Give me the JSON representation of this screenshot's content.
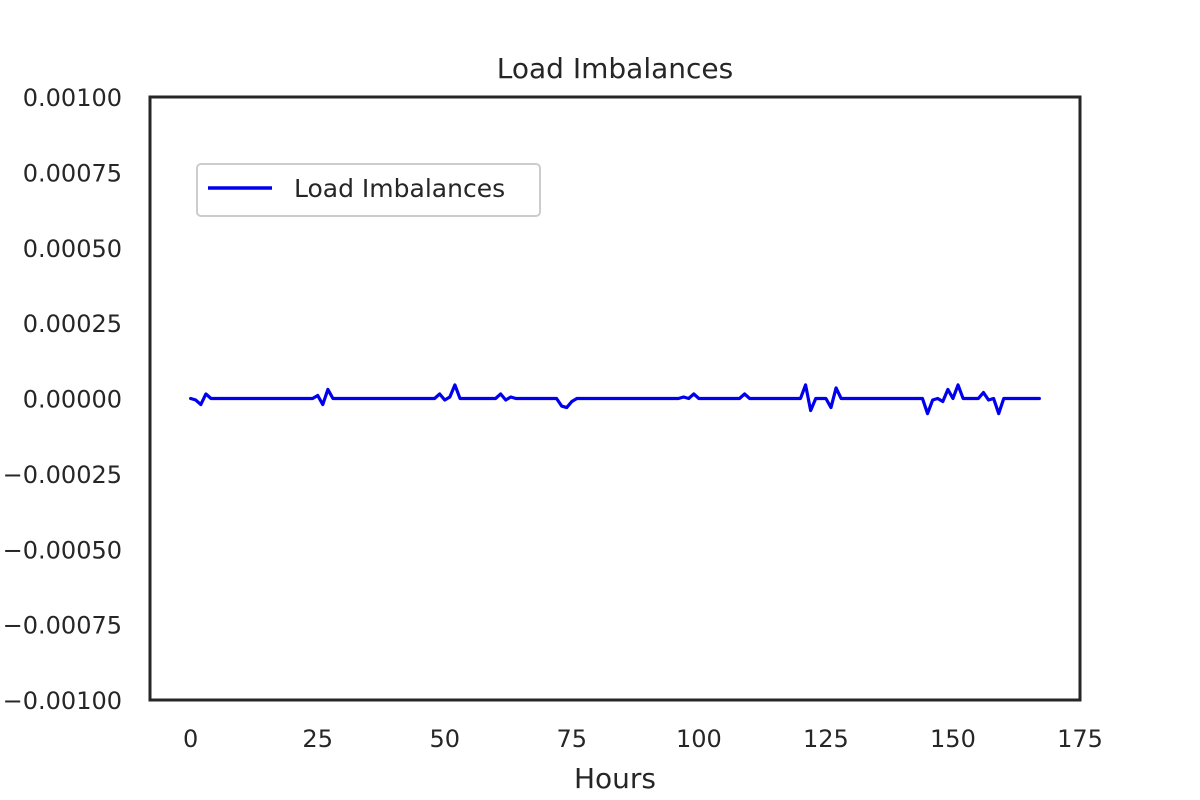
{
  "chart_data": {
    "type": "line",
    "title": "Load Imbalances",
    "xlabel": "Hours",
    "ylabel": "",
    "xlim": [
      -8,
      175
    ],
    "ylim": [
      -0.001,
      0.001
    ],
    "xticks": [
      0,
      25,
      50,
      75,
      100,
      125,
      150,
      175
    ],
    "xtick_labels": [
      "0",
      "25",
      "50",
      "75",
      "100",
      "125",
      "150",
      "175"
    ],
    "yticks": [
      0.001,
      0.00075,
      0.0005,
      0.00025,
      0.0,
      -0.00025,
      -0.0005,
      -0.00075,
      -0.001
    ],
    "ytick_labels": [
      "0.00100",
      "0.00075",
      "0.00050",
      "0.00025",
      "0.00000",
      "−0.00025",
      "−0.00050",
      "−0.00075",
      "−0.00100"
    ],
    "grid": false,
    "legend": {
      "placement": "upper-left",
      "entries": [
        "Load Imbalances"
      ]
    },
    "series": [
      {
        "name": "Load Imbalances",
        "color": "#0000ee",
        "x": [
          0,
          1,
          2,
          3,
          4,
          5,
          24,
          25,
          26,
          27,
          28,
          48,
          49,
          50,
          51,
          52,
          53,
          60,
          61,
          62,
          63,
          64,
          72,
          73,
          74,
          75,
          76,
          96,
          97,
          98,
          99,
          100,
          108,
          109,
          110,
          120,
          121,
          122,
          123,
          124,
          125,
          126,
          127,
          128,
          144,
          145,
          146,
          147,
          148,
          149,
          150,
          151,
          152,
          155,
          156,
          157,
          158,
          159,
          160,
          167
        ],
        "values": [
          0.0,
          -5e-06,
          -2e-05,
          1.5e-05,
          0.0,
          0.0,
          0.0,
          1e-05,
          -2e-05,
          3e-05,
          0.0,
          0.0,
          1.5e-05,
          -5e-06,
          5e-06,
          4.5e-05,
          0.0,
          0.0,
          1.5e-05,
          -5e-06,
          5e-06,
          0.0,
          0.0,
          -2.5e-05,
          -3e-05,
          -1e-05,
          0.0,
          0.0,
          5e-06,
          0.0,
          1.5e-05,
          0.0,
          0.0,
          1.5e-05,
          0.0,
          0.0,
          4.5e-05,
          -4e-05,
          0.0,
          0.0,
          0.0,
          -3e-05,
          3.5e-05,
          0.0,
          0.0,
          -5e-05,
          -5e-06,
          0.0,
          -1e-05,
          3e-05,
          0.0,
          4.5e-05,
          0.0,
          0.0,
          2e-05,
          -5e-06,
          0.0,
          -5e-05,
          0.0,
          0.0
        ]
      }
    ]
  }
}
